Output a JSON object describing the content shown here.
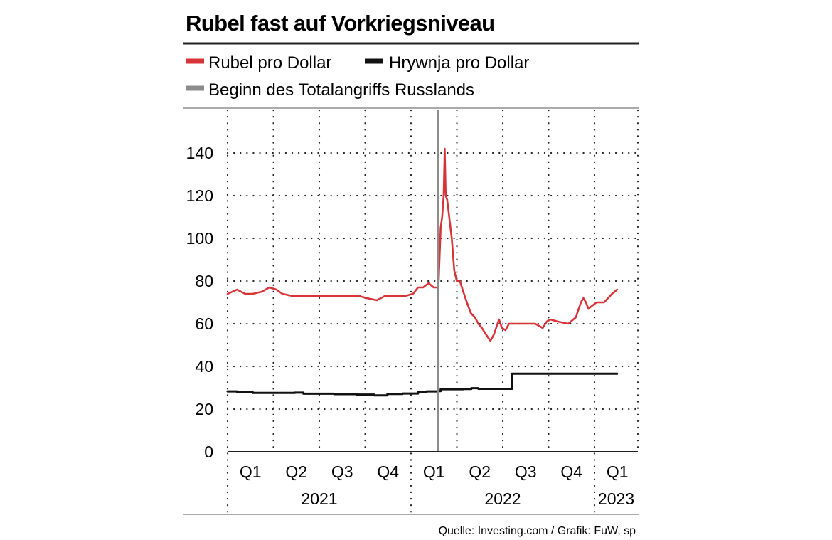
{
  "chart_data": {
    "type": "line",
    "title": "Rubel fast auf Vorkriegsniveau",
    "source": "Quelle: Investing.com / Grafik: FuW, sp",
    "ylim": [
      0,
      150
    ],
    "y_ticks": [
      "0",
      "20",
      "40",
      "60",
      "80",
      "100",
      "120",
      "140"
    ],
    "grid": true,
    "legend_position": "top",
    "x_quarter_labels": [
      "Q1",
      "Q2",
      "Q3",
      "Q4",
      "Q1",
      "Q2",
      "Q3",
      "Q4",
      "Q1"
    ],
    "x_year_labels": [
      "2021",
      "2022",
      "2023"
    ],
    "marker": {
      "label": "Beginn des Totalangriffs Russlands",
      "x": "2022-02-24",
      "color": "#8c8c8c"
    },
    "series": [
      {
        "name": "Rubel pro Dollar",
        "color": "#d7343a",
        "x": [
          "2021-01-01",
          "2021-01-20",
          "2021-02-05",
          "2021-02-20",
          "2021-03-10",
          "2021-03-25",
          "2021-04-08",
          "2021-04-20",
          "2021-05-10",
          "2021-06-01",
          "2021-06-20",
          "2021-07-10",
          "2021-07-25",
          "2021-08-15",
          "2021-09-01",
          "2021-09-20",
          "2021-10-05",
          "2021-10-25",
          "2021-11-10",
          "2021-11-25",
          "2021-12-10",
          "2021-12-20",
          "2022-01-05",
          "2022-01-15",
          "2022-01-25",
          "2022-02-05",
          "2022-02-15",
          "2022-02-23",
          "2022-02-25",
          "2022-03-01",
          "2022-03-04",
          "2022-03-07",
          "2022-03-09",
          "2022-03-11",
          "2022-03-14",
          "2022-03-18",
          "2022-03-23",
          "2022-03-28",
          "2022-04-02",
          "2022-04-08",
          "2022-04-15",
          "2022-04-22",
          "2022-04-30",
          "2022-05-08",
          "2022-05-15",
          "2022-05-22",
          "2022-05-30",
          "2022-06-08",
          "2022-06-15",
          "2022-06-25",
          "2022-07-01",
          "2022-07-08",
          "2022-07-15",
          "2022-07-25",
          "2022-08-05",
          "2022-08-20",
          "2022-09-05",
          "2022-09-20",
          "2022-09-28",
          "2022-10-05",
          "2022-10-20",
          "2022-11-10",
          "2022-11-25",
          "2022-12-05",
          "2022-12-10",
          "2022-12-15",
          "2022-12-20",
          "2022-12-25",
          "2023-01-05",
          "2023-01-20",
          "2023-02-05",
          "2023-02-15"
        ],
        "values": [
          74,
          76,
          74,
          74,
          75,
          77,
          76,
          74,
          73,
          73,
          73,
          73,
          73,
          73,
          73,
          73,
          72,
          71,
          73,
          73,
          73,
          73,
          74,
          77,
          77,
          79,
          77,
          77,
          80,
          105,
          110,
          120,
          142,
          120,
          118,
          110,
          100,
          85,
          80,
          80,
          75,
          70,
          65,
          63,
          60,
          58,
          55,
          52,
          55,
          62,
          58,
          57,
          60,
          60,
          60,
          60,
          60,
          58,
          61,
          62,
          61,
          60,
          63,
          70,
          72,
          70,
          67,
          68,
          70,
          70,
          74,
          76
        ]
      },
      {
        "name": "Hrywnja pro Dollar",
        "color": "#111111",
        "x": [
          "2021-01-01",
          "2021-01-20",
          "2021-02-20",
          "2021-04-01",
          "2021-05-15",
          "2021-06-01",
          "2021-07-01",
          "2021-08-01",
          "2021-09-15",
          "2021-10-20",
          "2021-11-15",
          "2021-12-15",
          "2022-01-15",
          "2022-02-01",
          "2022-02-24",
          "2022-03-01",
          "2022-04-01",
          "2022-04-15",
          "2022-05-01",
          "2022-05-15",
          "2022-06-01",
          "2022-07-20",
          "2022-07-21",
          "2022-10-01",
          "2023-01-01",
          "2023-02-15"
        ],
        "values": [
          28.3,
          28.0,
          27.6,
          27.6,
          27.7,
          27.2,
          27.2,
          27.0,
          26.8,
          26.4,
          27.1,
          27.3,
          28.1,
          28.3,
          28.4,
          29.3,
          29.3,
          29.4,
          29.8,
          29.5,
          29.5,
          29.5,
          36.6,
          36.6,
          36.6,
          36.6
        ]
      }
    ]
  }
}
